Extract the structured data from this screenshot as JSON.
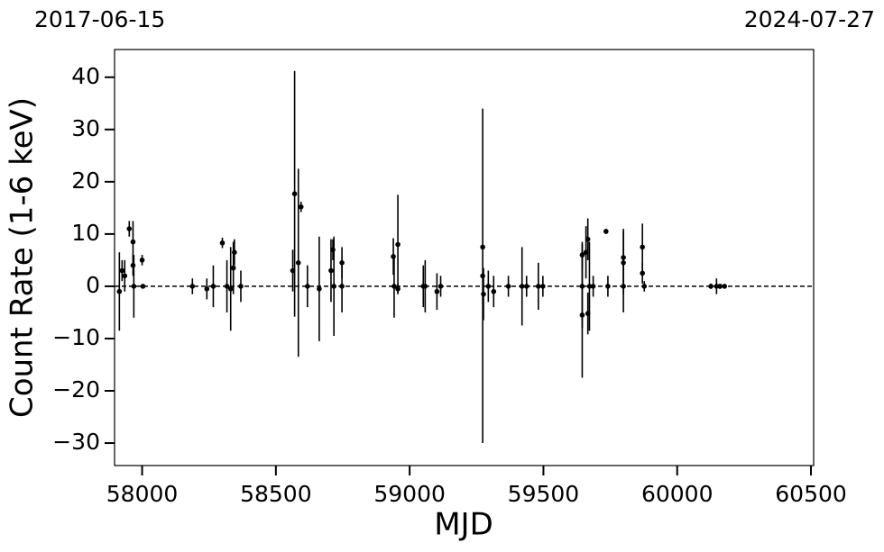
{
  "chart_data": {
    "type": "errorbar-scatter",
    "annotations": [
      "2017-06-15",
      "2024-07-27"
    ],
    "xlabel": "MJD",
    "ylabel": "Count Rate (1-6 keV)",
    "xlim": [
      57897,
      60510
    ],
    "ylim": [
      -34.3,
      45.3
    ],
    "xticks": [
      58000,
      58500,
      59000,
      59500,
      60000,
      60500
    ],
    "yticks": [
      {
        "value": -30,
        "label": "−30"
      },
      {
        "value": -20,
        "label": "−20"
      },
      {
        "value": -10,
        "label": "−10"
      },
      0,
      10,
      20,
      30,
      40
    ],
    "hline": 0,
    "color": "#000000",
    "series": [
      {
        "x": [
          57915,
          57925,
          57935,
          57952,
          57966,
          57966,
          57969,
          58000,
          58003,
          58188,
          58242,
          58266,
          58300,
          58317,
          58331,
          58341,
          58345,
          58369,
          58563,
          58570,
          58584,
          58594,
          58618,
          58662,
          58706,
          58713,
          58717,
          58747,
          58747,
          58939,
          58942,
          58956,
          58956,
          59051,
          59058,
          59102,
          59116,
          59273,
          59273,
          59276,
          59294,
          59314,
          59369,
          59420,
          59437,
          59481,
          59498,
          59645,
          59645,
          59645,
          59659,
          59666,
          59666,
          59672,
          59686,
          59734,
          59741,
          59799,
          59799,
          59799,
          59870,
          59870,
          59877,
          60126,
          60147,
          60160,
          60177
        ],
        "values": [
          -1,
          3,
          2,
          11,
          8.5,
          4,
          0,
          5,
          0,
          0,
          -0.5,
          0,
          8.3,
          0,
          -0.5,
          3.5,
          6.5,
          0,
          3,
          17.7,
          4.5,
          15.2,
          0,
          -0.5,
          3,
          7,
          0,
          4.5,
          0,
          5.7,
          0,
          8,
          -0.5,
          0,
          0,
          -1,
          0,
          2,
          7.5,
          -1.5,
          0,
          -1,
          0,
          0,
          0,
          0,
          0,
          6,
          -5.5,
          0,
          6.5,
          9,
          -5.2,
          0,
          0,
          10.5,
          0,
          5.5,
          4.5,
          0,
          7.5,
          2.5,
          0,
          0,
          0,
          0,
          0
        ],
        "errors": [
          7.5,
          2,
          3,
          1.5,
          4,
          2,
          6,
          1,
          0.3,
          1.5,
          2,
          4,
          1,
          5,
          8,
          5,
          2.5,
          3,
          4,
          23.5,
          18,
          1,
          4,
          10,
          6,
          2,
          9.5,
          3,
          5,
          3.5,
          6,
          9.5,
          1,
          4,
          5,
          3.5,
          2,
          32,
          0.5,
          5,
          3,
          3,
          2,
          7.5,
          2,
          4.5,
          2,
          2.5,
          12,
          8,
          5,
          4,
          4,
          8.5,
          2,
          0.5,
          2,
          5.5,
          6,
          5,
          4.5,
          2,
          1,
          0.5,
          1.5,
          0.5,
          0.3
        ]
      }
    ]
  }
}
